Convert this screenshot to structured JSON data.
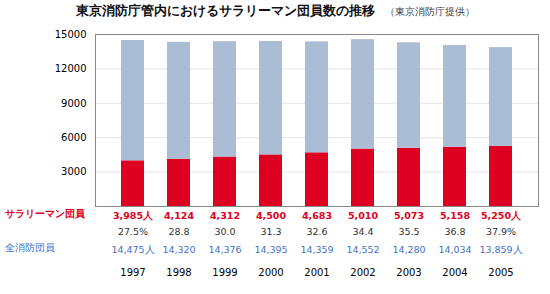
{
  "chart_data": {
    "type": "bar",
    "title": "東京消防庁管内におけるサラリーマン団員数の推移",
    "subtitle": "（東京消防庁提供）",
    "categories": [
      "1997",
      "1998",
      "1999",
      "2000",
      "2001",
      "2002",
      "2003",
      "2004",
      "2005"
    ],
    "stacked": true,
    "series": [
      {
        "color": "#dd0020",
        "values": [
          3985,
          4124,
          4312,
          4500,
          4683,
          5010,
          5073,
          5158,
          5250
        ]
      },
      {
        "color": "#aabdd4",
        "values": [
          10490,
          10196,
          10064,
          9895,
          9676,
          9542,
          9207,
          8876,
          8609
        ]
      }
    ],
    "ylim": [
      0,
      15000
    ],
    "yticks": [
      3000,
      6000,
      9000,
      12000,
      15000
    ],
    "grid": true,
    "annotations": [
      {
        "label": "サラリーマン団員",
        "color": "#dd0020",
        "values": [
          3985,
          4124,
          4312,
          4500,
          4683,
          5010,
          5073,
          5158,
          5250
        ],
        "value_labels": [
          "3,985人",
          "4,124",
          "4,312",
          "4,500",
          "4,683",
          "5,010",
          "5,073",
          "5,158",
          "5,250人"
        ]
      },
      {
        "values": [
          27.5,
          28.8,
          30.0,
          31.3,
          32.6,
          34.4,
          35.5,
          36.8,
          37.9
        ],
        "value_labels": [
          "27.5%",
          "28.8",
          "30.0",
          "31.3",
          "32.6",
          "34.4",
          "35.5",
          "36.8",
          "37.9%"
        ]
      },
      {
        "label": "全消防団員",
        "color": "#4472c4",
        "values": [
          14475,
          14320,
          14376,
          14395,
          14359,
          14552,
          14280,
          14034,
          13859
        ],
        "value_labels": [
          "14,475人",
          "14,320",
          "14,376",
          "14,395",
          "14,359",
          "14,552",
          "14,280",
          "14,034",
          "13,859人"
        ]
      }
    ]
  }
}
